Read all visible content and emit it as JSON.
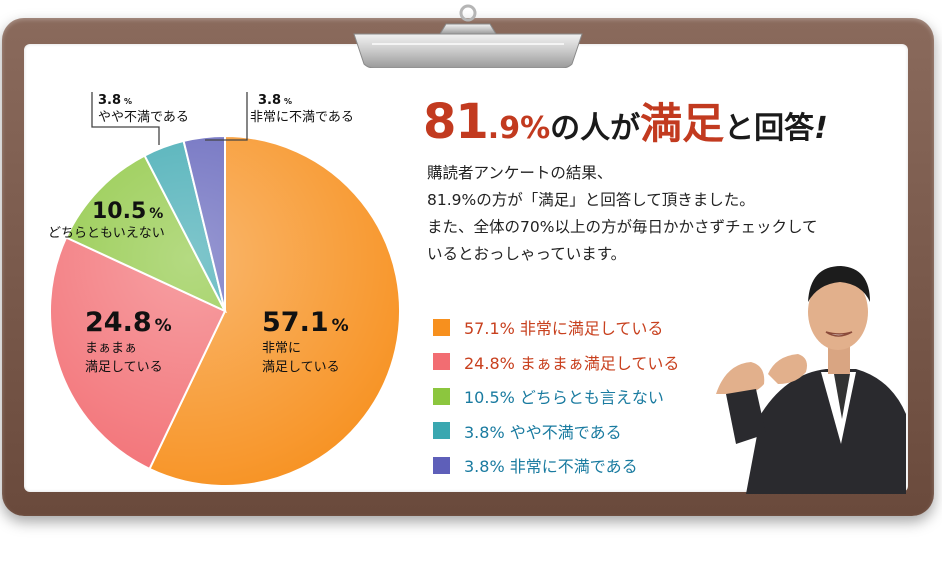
{
  "chart_data": {
    "type": "pie",
    "slices": [
      {
        "value_label": "57.1",
        "value": 57.1,
        "line1": "非常に",
        "line2": "満足している",
        "color": "#f7901e"
      },
      {
        "value_label": "24.8",
        "value": 24.8,
        "line1": "まぁまぁ",
        "line2": "満足している",
        "color": "#f26d72"
      },
      {
        "value_label": "10.5",
        "value": 10.5,
        "line1": "どちらともいえない",
        "line2": "",
        "color": "#8cc63e"
      },
      {
        "value_label": "3.8",
        "value": 3.8,
        "line1": "やや不満である",
        "line2": "",
        "color": "#3aa7b0"
      },
      {
        "value_label": "3.8",
        "value": 3.8,
        "line1": "非常に不満である",
        "line2": "",
        "color": "#5e5fb9"
      }
    ],
    "percent_sign": "%"
  },
  "headline": {
    "number": "81",
    "decimal": ".9%",
    "part1": "の人が",
    "emph": "満足",
    "part2": "と回答",
    "exclaim": "!"
  },
  "description": [
    "購読者アンケートの結果、",
    "81.9%の方が「満足」と回答して頂きました。",
    "また、全体の70%以上の方が毎日かかさずチェックして",
    "いるとおっしゃっています。"
  ],
  "legend": [
    {
      "label": "57.1%  非常に満足している",
      "color": "#f7901e",
      "text_color": "#c8401e"
    },
    {
      "label": "24.8%  まぁまぁ満足している",
      "color": "#f26d72",
      "text_color": "#c8401e"
    },
    {
      "label": "10.5%  どちらとも言えない",
      "color": "#8cc63e",
      "text_color": "#1a7ba0"
    },
    {
      "label": "3.8%    やや不満である",
      "color": "#3aa7b0",
      "text_color": "#1a7ba0"
    },
    {
      "label": "3.8%    非常に不満である",
      "color": "#5e5fb9",
      "text_color": "#1a7ba0"
    }
  ]
}
